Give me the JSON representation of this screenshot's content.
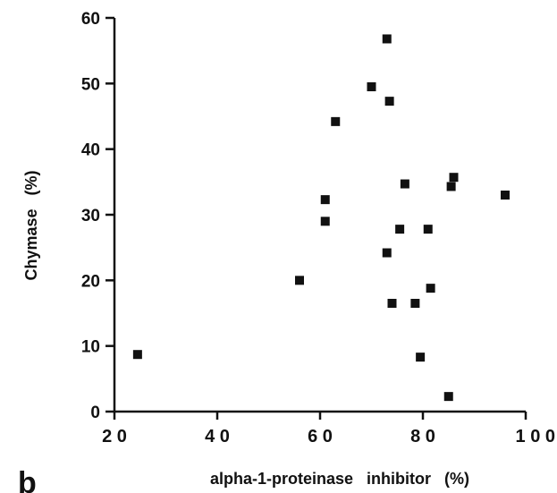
{
  "chart_data": {
    "type": "scatter",
    "panel_label": "b",
    "xlabel": "alpha-1-proteinase   inhibitor   (%)",
    "ylabel": "Chymase   (%)",
    "xlim": [
      20,
      100
    ],
    "ylim": [
      0,
      60
    ],
    "xticks": [
      "2 0",
      "4 0",
      "6 0",
      "8 0",
      "1 0 0"
    ],
    "yticks": [
      "0",
      "10",
      "20",
      "30",
      "40",
      "50",
      "60"
    ],
    "grid": false,
    "marker": "square",
    "marker_color": "#111111",
    "points": [
      {
        "x": 24.5,
        "y": 8.7
      },
      {
        "x": 56,
        "y": 20
      },
      {
        "x": 61,
        "y": 29
      },
      {
        "x": 61,
        "y": 32.3
      },
      {
        "x": 63,
        "y": 44.2
      },
      {
        "x": 70,
        "y": 49.5
      },
      {
        "x": 73,
        "y": 56.8
      },
      {
        "x": 73,
        "y": 24.2
      },
      {
        "x": 73.5,
        "y": 47.3
      },
      {
        "x": 74,
        "y": 16.5
      },
      {
        "x": 75.5,
        "y": 27.8
      },
      {
        "x": 76.5,
        "y": 34.7
      },
      {
        "x": 78.5,
        "y": 16.5
      },
      {
        "x": 79.5,
        "y": 8.3
      },
      {
        "x": 81,
        "y": 27.8
      },
      {
        "x": 81.5,
        "y": 18.8
      },
      {
        "x": 85,
        "y": 2.3
      },
      {
        "x": 85.5,
        "y": 34.3
      },
      {
        "x": 86,
        "y": 35.7
      },
      {
        "x": 96,
        "y": 33
      }
    ]
  }
}
